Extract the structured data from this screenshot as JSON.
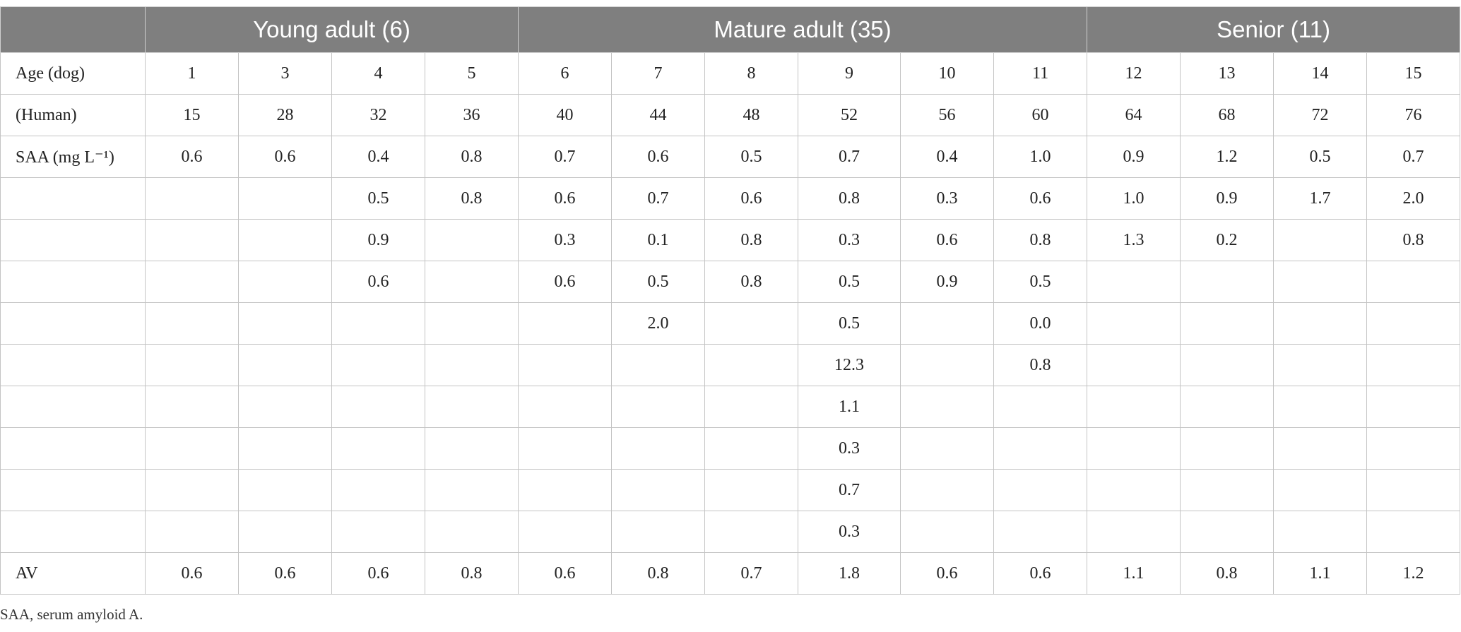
{
  "table": {
    "groups": [
      "Young adult (6)",
      "Mature adult (35)",
      "Senior (11)"
    ],
    "rows": [
      [
        "Age (dog)",
        "1",
        "3",
        "4",
        "5",
        "6",
        "7",
        "8",
        "9",
        "10",
        "11",
        "12",
        "13",
        "14",
        "15"
      ],
      [
        "(Human)",
        "15",
        "28",
        "32",
        "36",
        "40",
        "44",
        "48",
        "52",
        "56",
        "60",
        "64",
        "68",
        "72",
        "76"
      ],
      [
        "SAA (mg L⁻¹)",
        "0.6",
        "0.6",
        "0.4",
        "0.8",
        "0.7",
        "0.6",
        "0.5",
        "0.7",
        "0.4",
        "1.0",
        "0.9",
        "1.2",
        "0.5",
        "0.7"
      ],
      [
        null,
        null,
        null,
        "0.5",
        "0.8",
        "0.6",
        "0.7",
        "0.6",
        "0.8",
        "0.3",
        "0.6",
        "1.0",
        "0.9",
        "1.7",
        "2.0"
      ],
      [
        null,
        null,
        null,
        "0.9",
        null,
        "0.3",
        "0.1",
        "0.8",
        "0.3",
        "0.6",
        "0.8",
        "1.3",
        "0.2",
        null,
        "0.8"
      ],
      [
        null,
        null,
        null,
        "0.6",
        null,
        "0.6",
        "0.5",
        "0.8",
        "0.5",
        "0.9",
        "0.5",
        null,
        null,
        null,
        null
      ],
      [
        null,
        null,
        null,
        null,
        null,
        null,
        "2.0",
        null,
        "0.5",
        null,
        "0.0",
        null,
        null,
        null,
        null
      ],
      [
        null,
        null,
        null,
        null,
        null,
        null,
        null,
        null,
        "12.3",
        null,
        "0.8",
        null,
        null,
        null,
        null
      ],
      [
        null,
        null,
        null,
        null,
        null,
        null,
        null,
        null,
        "1.1",
        null,
        null,
        null,
        null,
        null,
        null
      ],
      [
        null,
        null,
        null,
        null,
        null,
        null,
        null,
        null,
        "0.3",
        null,
        null,
        null,
        null,
        null,
        null
      ],
      [
        null,
        null,
        null,
        null,
        null,
        null,
        null,
        null,
        "0.7",
        null,
        null,
        null,
        null,
        null,
        null
      ],
      [
        null,
        null,
        null,
        null,
        null,
        null,
        null,
        null,
        "0.3",
        null,
        null,
        null,
        null,
        null,
        null
      ],
      [
        "AV",
        "0.6",
        "0.6",
        "0.6",
        "0.8",
        "0.6",
        "0.8",
        "0.7",
        "1.8",
        "0.6",
        "0.6",
        "1.1",
        "0.8",
        "1.1",
        "1.2"
      ]
    ]
  },
  "footnote": "SAA, serum amyloid A."
}
